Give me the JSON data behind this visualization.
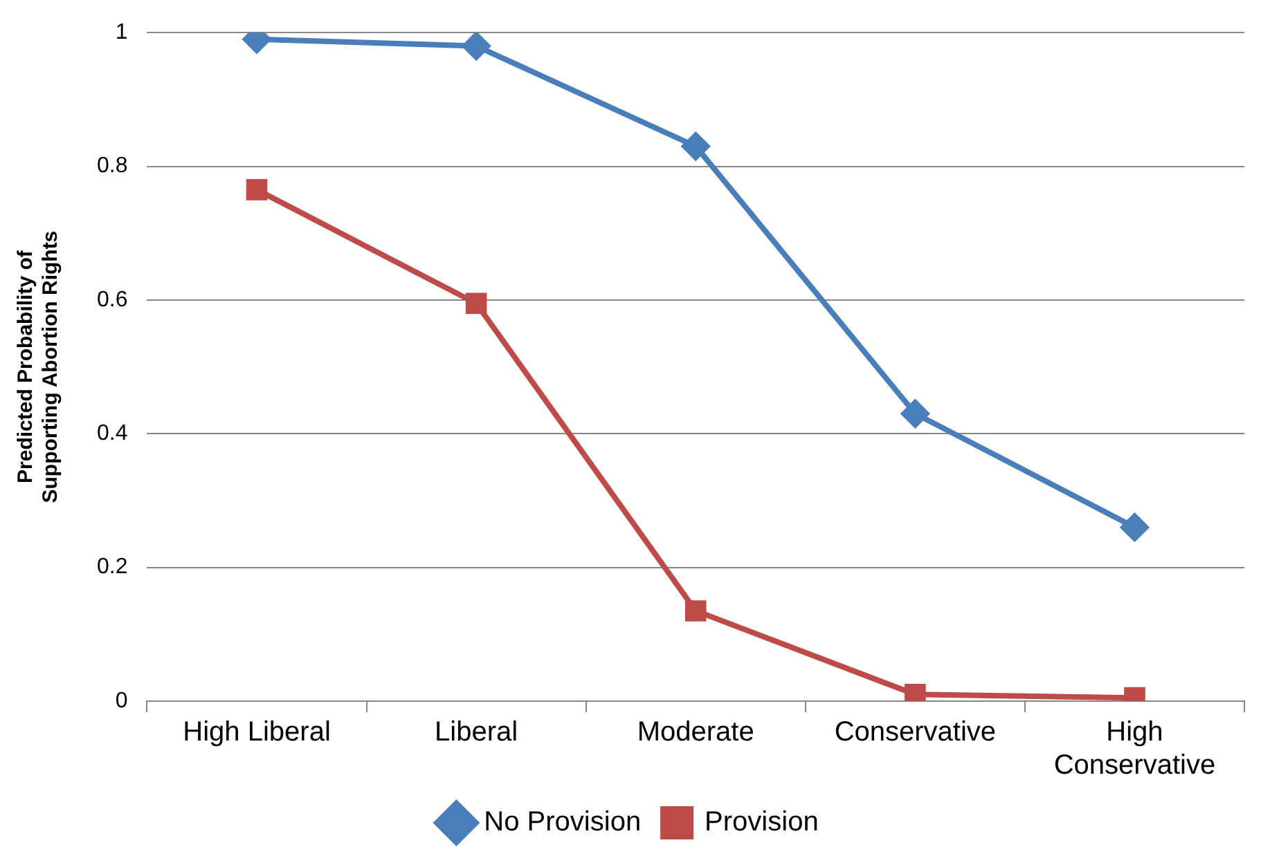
{
  "chart_data": {
    "type": "line",
    "ylabel": "Predicted Probability of\nSupporting Abortion Rights",
    "categories": [
      "High Liberal",
      "Liberal",
      "Moderate",
      "Conservative",
      "High Conservative"
    ],
    "series": [
      {
        "name": "No Provision",
        "color": "#4a7ebb",
        "marker": "diamond",
        "values": [
          0.99,
          0.98,
          0.83,
          0.43,
          0.26
        ]
      },
      {
        "name": "Provision",
        "color": "#be4b48",
        "marker": "square",
        "values": [
          0.765,
          0.595,
          0.135,
          0.01,
          0.005
        ]
      }
    ],
    "ylim": [
      0,
      1
    ],
    "yticks": [
      0,
      0.2,
      0.4,
      0.6,
      0.8,
      1
    ],
    "grid": "y",
    "legend": "bottom",
    "line_style": "solid"
  }
}
